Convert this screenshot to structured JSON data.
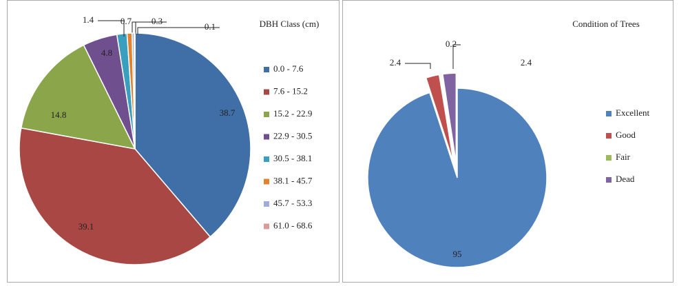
{
  "chart_data": [
    {
      "type": "pie",
      "title": "DBH Class (cm)",
      "categories": [
        "0.0 - 7.6",
        "7.6 - 15.2",
        "15.2 - 22.9",
        "22.9 - 30.5",
        "30.5 - 38.1",
        "38.1 - 45.7",
        "45.7 - 53.3",
        "61.0 - 68.6"
      ],
      "values": [
        38.7,
        39.1,
        14.8,
        4.8,
        1.4,
        0.7,
        0.3,
        0.1
      ],
      "colors": [
        "#3f6fa6",
        "#a84744",
        "#8aa54a",
        "#6f4f8e",
        "#3a9fbf",
        "#e0822e",
        "#9eaed6",
        "#d99a99"
      ],
      "legend": "right"
    },
    {
      "type": "pie",
      "title": "Condition of Trees",
      "categories": [
        "Excellent",
        "Good",
        "Fair",
        "Dead"
      ],
      "values": [
        95,
        2.4,
        0.2,
        2.4
      ],
      "colors": [
        "#4f81bd",
        "#c0504d",
        "#9bbb59",
        "#8064a2"
      ],
      "legend": "right"
    }
  ]
}
